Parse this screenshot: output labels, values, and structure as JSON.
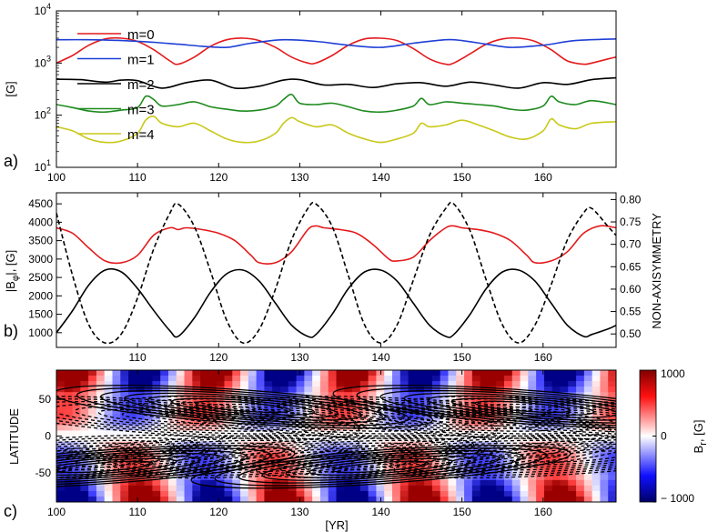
{
  "figure": {
    "panel_labels": [
      "a)",
      "b)",
      "c)"
    ],
    "shared_xlabel": "[YR]"
  },
  "chart_data": [
    {
      "type": "line",
      "panel": "a)",
      "ylabel": "[G]",
      "yscale": "log",
      "xlim": [
        100,
        169
      ],
      "ylim": [
        10,
        10000
      ],
      "x_ticks": [
        "100",
        "110",
        "120",
        "130",
        "140",
        "150",
        "160"
      ],
      "y_ticks": [
        {
          "base": "10",
          "exp": "4",
          "v": 10000
        },
        {
          "base": "10",
          "exp": "3",
          "v": 1000
        },
        {
          "base": "10",
          "exp": "2",
          "v": 100
        },
        {
          "base": "10",
          "exp": "1",
          "v": 10
        }
      ],
      "legend_position": "top-left",
      "series": [
        {
          "name": "m=0",
          "color": "#e31a1c",
          "x": [
            100,
            102,
            104,
            106,
            108,
            110,
            112,
            114,
            115,
            117,
            119,
            121,
            123,
            125,
            127,
            129,
            131,
            132,
            134,
            136,
            138,
            140,
            142,
            144,
            146,
            148,
            149,
            151,
            153,
            155,
            157,
            159,
            161,
            163,
            165,
            166,
            168,
            169
          ],
          "y": [
            1000,
            1400,
            2200,
            2900,
            3000,
            2600,
            1800,
            1100,
            950,
            1300,
            2100,
            2800,
            3000,
            2700,
            2000,
            1300,
            1000,
            1000,
            1400,
            2200,
            2900,
            3000,
            2700,
            1900,
            1200,
            950,
            1000,
            1500,
            2300,
            2900,
            3000,
            2600,
            1800,
            1100,
            950,
            1000,
            1200,
            1300
          ]
        },
        {
          "name": "m=1",
          "color": "#1f3fd6",
          "x": [
            100,
            104,
            108,
            112,
            115,
            118,
            121,
            124,
            128,
            132,
            136,
            140,
            144,
            148,
            150,
            153,
            156,
            160,
            164,
            169
          ],
          "y": [
            2800,
            2800,
            2700,
            2500,
            2300,
            2100,
            2000,
            2400,
            2800,
            2600,
            2200,
            2000,
            2400,
            2800,
            2700,
            2300,
            2000,
            2200,
            2700,
            2900
          ]
        },
        {
          "name": "m=2",
          "color": "#000000",
          "x": [
            100,
            103,
            106,
            108,
            110,
            113,
            116,
            119,
            122,
            125,
            128,
            130,
            133,
            136,
            139,
            142,
            145,
            148,
            151,
            154,
            157,
            160,
            163,
            166,
            169
          ],
          "y": [
            490,
            480,
            430,
            470,
            460,
            330,
            420,
            470,
            330,
            360,
            470,
            480,
            380,
            390,
            340,
            400,
            420,
            360,
            430,
            380,
            330,
            420,
            390,
            480,
            520
          ]
        },
        {
          "name": "m=3",
          "color": "#1e8a1e",
          "x": [
            100,
            102,
            104,
            106,
            108,
            110,
            111,
            112,
            113,
            115,
            117,
            119,
            121,
            123,
            125,
            127,
            128,
            129,
            130,
            132,
            134,
            136,
            138,
            140,
            142,
            144,
            145,
            146,
            148,
            150,
            152,
            154,
            156,
            158,
            160,
            161,
            162,
            164,
            166,
            169
          ],
          "y": [
            160,
            140,
            120,
            115,
            125,
            140,
            230,
            200,
            150,
            160,
            180,
            145,
            130,
            120,
            125,
            150,
            200,
            250,
            170,
            160,
            170,
            145,
            120,
            115,
            125,
            150,
            210,
            160,
            180,
            170,
            160,
            150,
            130,
            125,
            150,
            230,
            180,
            160,
            190,
            160
          ]
        },
        {
          "name": "m=4",
          "color": "#c8c818",
          "x": [
            100,
            102,
            104,
            106,
            108,
            110,
            111,
            112,
            113,
            115,
            117,
            119,
            121,
            123,
            125,
            127,
            128,
            129,
            130,
            132,
            134,
            136,
            138,
            140,
            142,
            144,
            145,
            146,
            148,
            150,
            152,
            154,
            156,
            158,
            160,
            161,
            162,
            164,
            166,
            169
          ],
          "y": [
            60,
            50,
            35,
            30,
            32,
            45,
            80,
            95,
            70,
            60,
            70,
            50,
            35,
            30,
            32,
            45,
            70,
            90,
            75,
            60,
            65,
            45,
            35,
            30,
            35,
            45,
            70,
            60,
            65,
            80,
            65,
            50,
            38,
            35,
            50,
            85,
            65,
            55,
            70,
            75
          ]
        }
      ]
    },
    {
      "type": "line",
      "panel": "b)",
      "ylabel": "|B_φ|, [G]",
      "ylabel_parts": {
        "pre": "|B",
        "sub": "φ",
        "post": "|, [G]"
      },
      "y2label": "NON-AXISYMMETRY",
      "xlim": [
        100,
        169
      ],
      "ylim": [
        600,
        4800
      ],
      "y2lim": [
        0.47,
        0.815
      ],
      "x_ticks": [
        "110",
        "120",
        "130",
        "140",
        "150",
        "160"
      ],
      "y_ticks": [
        "1000",
        "1500",
        "2000",
        "2500",
        "3000",
        "3500",
        "4000",
        "4500"
      ],
      "y2_ticks": [
        "0.50",
        "0.55",
        "0.60",
        "0.65",
        "0.70",
        "0.75",
        "0.80"
      ],
      "series": [
        {
          "name": "red (left axis)",
          "axis": "left",
          "color": "#e31a1c",
          "style": "solid",
          "x": [
            100,
            102,
            104,
            106,
            108,
            110,
            112,
            114,
            115,
            116,
            118,
            120,
            122,
            124,
            125,
            127,
            129,
            131,
            132,
            133,
            135,
            137,
            139,
            141,
            142,
            144,
            146,
            148,
            149,
            150,
            152,
            154,
            156,
            158,
            159,
            161,
            163,
            165,
            167,
            169
          ],
          "y": [
            3850,
            3700,
            3300,
            2950,
            2900,
            3100,
            3650,
            3850,
            3800,
            3850,
            3800,
            3700,
            3500,
            3100,
            2900,
            2900,
            3200,
            3800,
            3900,
            3850,
            3800,
            3700,
            3400,
            3000,
            2950,
            3050,
            3500,
            3850,
            3900,
            3850,
            3800,
            3700,
            3500,
            3100,
            2900,
            2950,
            3200,
            3700,
            3900,
            3850
          ]
        },
        {
          "name": "black (left axis)",
          "axis": "left",
          "color": "#000000",
          "style": "solid",
          "x": [
            100,
            102,
            104,
            106,
            108,
            110,
            112,
            114,
            115,
            117,
            119,
            121,
            123,
            125,
            127,
            129,
            131,
            132,
            134,
            136,
            138,
            140,
            142,
            144,
            146,
            148,
            149,
            151,
            153,
            155,
            157,
            159,
            161,
            163,
            165,
            166,
            168,
            169
          ],
          "y": [
            1000,
            1600,
            2300,
            2700,
            2650,
            2200,
            1600,
            1050,
            900,
            1400,
            2100,
            2600,
            2700,
            2400,
            1800,
            1200,
            900,
            950,
            1500,
            2200,
            2650,
            2700,
            2400,
            1800,
            1200,
            900,
            950,
            1500,
            2200,
            2650,
            2700,
            2400,
            1800,
            1200,
            900,
            950,
            1100,
            1200
          ]
        },
        {
          "name": "black dashed (right axis)",
          "axis": "right",
          "color": "#000000",
          "style": "dashed",
          "x": [
            100,
            102,
            104,
            106,
            108,
            110,
            112,
            114,
            115,
            117,
            119,
            121,
            123,
            125,
            127,
            129,
            131,
            132,
            134,
            136,
            138,
            140,
            142,
            144,
            146,
            148,
            149,
            151,
            153,
            155,
            157,
            159,
            161,
            163,
            165,
            166,
            168,
            169
          ],
          "y": [
            0.77,
            0.63,
            0.52,
            0.48,
            0.5,
            0.58,
            0.69,
            0.77,
            0.79,
            0.74,
            0.64,
            0.53,
            0.48,
            0.51,
            0.6,
            0.71,
            0.78,
            0.79,
            0.74,
            0.63,
            0.52,
            0.48,
            0.52,
            0.62,
            0.72,
            0.78,
            0.79,
            0.73,
            0.62,
            0.52,
            0.48,
            0.52,
            0.61,
            0.71,
            0.77,
            0.78,
            0.74,
            0.72
          ]
        }
      ]
    },
    {
      "type": "heatmap",
      "panel": "c)",
      "ylabel": "LATITUDE",
      "xlabel": "[YR]",
      "xlim": [
        100,
        169
      ],
      "ylim": [
        -90,
        90
      ],
      "x_ticks": [
        "100",
        "110",
        "120",
        "130",
        "140",
        "150",
        "160"
      ],
      "y_ticks": [
        "50",
        "0",
        "-50"
      ],
      "colorbar": {
        "label": "B_r, [G]",
        "label_parts": {
          "pre": "B",
          "sub": "r",
          "post": ", [G]"
        },
        "ticks": [
          "1000",
          "0",
          "− 1000"
        ],
        "vmin": -1000,
        "vmax": 1000,
        "colormap": "seismic",
        "color_low": "#000066",
        "color_mid": "#ffffff",
        "color_high": "#800000"
      },
      "field": "B_r (color), toroidal field contours (solid positive, dashed negative)",
      "cycle_period_years": 17.2
    }
  ]
}
